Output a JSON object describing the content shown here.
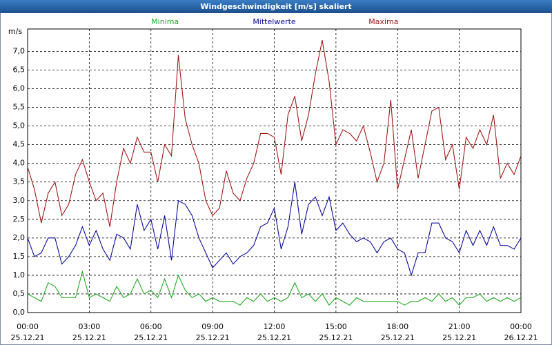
{
  "chart_data": {
    "type": "line",
    "title": "Windgeschwindigkeit [m/s] skaliert",
    "y_label": "m/s",
    "x": [
      0,
      20,
      40,
      60,
      80,
      100,
      120,
      140,
      160,
      180,
      200,
      220,
      240,
      260,
      280,
      300,
      320,
      340,
      360,
      380,
      400,
      420,
      440,
      460,
      480,
      500,
      520,
      540,
      560,
      580,
      600,
      620,
      640,
      660,
      680,
      700,
      720,
      740,
      760,
      780,
      800,
      820,
      840,
      860,
      880,
      900,
      920,
      940,
      960,
      980,
      1000,
      1020,
      1040,
      1060,
      1080,
      1100,
      1120,
      1140,
      1160,
      1180,
      1200,
      1220,
      1240,
      1260,
      1280,
      1300,
      1320,
      1340,
      1360,
      1380,
      1400,
      1420,
      1440
    ],
    "xlim": [
      0,
      1440
    ],
    "xticks": [
      {
        "value": 0,
        "label": "00:00",
        "date": "25.12.21"
      },
      {
        "value": 180,
        "label": "03:00",
        "date": "25.12.21"
      },
      {
        "value": 360,
        "label": "06:00",
        "date": "25.12.21"
      },
      {
        "value": 540,
        "label": "09:00",
        "date": "25.12.21"
      },
      {
        "value": 720,
        "label": "12:00",
        "date": "25.12.21"
      },
      {
        "value": 900,
        "label": "15:00",
        "date": "25.12.21"
      },
      {
        "value": 1080,
        "label": "18:00",
        "date": "25.12.21"
      },
      {
        "value": 1260,
        "label": "21:00",
        "date": "25.12.21"
      },
      {
        "value": 1440,
        "label": "00:00",
        "date": "26.12.21"
      }
    ],
    "ylim": [
      0,
      7.6
    ],
    "yticks": [
      {
        "value": 0,
        "label": "0,0"
      },
      {
        "value": 0.5,
        "label": "0,5"
      },
      {
        "value": 1,
        "label": "1,0"
      },
      {
        "value": 1.5,
        "label": "1,5"
      },
      {
        "value": 2,
        "label": "2,0"
      },
      {
        "value": 2.5,
        "label": "2,5"
      },
      {
        "value": 3,
        "label": "3,0"
      },
      {
        "value": 3.5,
        "label": "3,5"
      },
      {
        "value": 4,
        "label": "4,0"
      },
      {
        "value": 4.5,
        "label": "4,5"
      },
      {
        "value": 5,
        "label": "5,0"
      },
      {
        "value": 5.5,
        "label": "5,5"
      },
      {
        "value": 6,
        "label": "6,0"
      },
      {
        "value": 6.5,
        "label": "6,5"
      },
      {
        "value": 7,
        "label": "7,0"
      }
    ],
    "grid": true,
    "series": [
      {
        "name": "Minima",
        "color": "#22aa22",
        "values": [
          0.5,
          0.4,
          0.3,
          0.8,
          0.7,
          0.4,
          0.4,
          0.4,
          1.1,
          0.4,
          0.5,
          0.4,
          0.3,
          0.7,
          0.4,
          0.5,
          0.9,
          0.5,
          0.6,
          0.4,
          0.9,
          0.4,
          1.0,
          0.6,
          0.4,
          0.5,
          0.3,
          0.4,
          0.3,
          0.3,
          0.3,
          0.2,
          0.4,
          0.3,
          0.5,
          0.3,
          0.4,
          0.3,
          0.4,
          0.8,
          0.4,
          0.5,
          0.3,
          0.5,
          0.2,
          0.4,
          0.3,
          0.2,
          0.4,
          0.3,
          0.3,
          0.3,
          0.3,
          0.3,
          0.3,
          0.2,
          0.3,
          0.3,
          0.4,
          0.3,
          0.5,
          0.3,
          0.4,
          0.2,
          0.4,
          0.4,
          0.5,
          0.3,
          0.4,
          0.3,
          0.4,
          0.3,
          0.4
        ]
      },
      {
        "name": "Mittelwerte",
        "color": "#0a0a9c",
        "values": [
          2.0,
          1.5,
          1.6,
          2.0,
          2.0,
          1.3,
          1.5,
          1.8,
          2.3,
          1.8,
          2.2,
          1.7,
          1.4,
          2.1,
          2.0,
          1.7,
          2.9,
          2.2,
          2.5,
          1.7,
          2.6,
          1.4,
          3.0,
          2.9,
          2.6,
          2.0,
          1.6,
          1.2,
          1.4,
          1.6,
          1.3,
          1.5,
          1.6,
          1.8,
          2.3,
          2.4,
          2.8,
          1.7,
          2.3,
          3.5,
          2.1,
          2.9,
          3.1,
          2.6,
          3.1,
          2.2,
          2.4,
          2.1,
          1.9,
          2.0,
          1.9,
          1.6,
          1.9,
          2.0,
          1.7,
          1.6,
          1.0,
          1.6,
          1.6,
          2.4,
          2.4,
          2.0,
          1.9,
          1.6,
          2.2,
          1.8,
          2.2,
          1.8,
          2.3,
          1.8,
          1.8,
          1.7,
          2.0
        ]
      },
      {
        "name": "Maxima",
        "color": "#a01818",
        "values": [
          3.9,
          3.3,
          2.4,
          3.2,
          3.5,
          2.6,
          2.9,
          3.7,
          4.1,
          3.5,
          3.0,
          3.2,
          2.3,
          3.5,
          4.4,
          4.0,
          4.7,
          4.3,
          4.3,
          3.5,
          4.5,
          4.2,
          6.9,
          5.2,
          4.5,
          4.0,
          3.0,
          2.6,
          2.8,
          3.8,
          3.2,
          3.0,
          3.6,
          4.0,
          4.8,
          4.8,
          4.7,
          3.7,
          5.3,
          5.8,
          4.6,
          5.3,
          6.4,
          7.3,
          6.2,
          4.5,
          4.9,
          4.8,
          4.6,
          5.0,
          4.3,
          3.5,
          4.0,
          5.7,
          3.3,
          4.1,
          4.9,
          3.6,
          4.5,
          5.4,
          5.5,
          4.1,
          4.5,
          3.3,
          4.7,
          4.4,
          4.9,
          4.5,
          5.3,
          3.6,
          4.0,
          3.7,
          4.2
        ]
      }
    ]
  }
}
